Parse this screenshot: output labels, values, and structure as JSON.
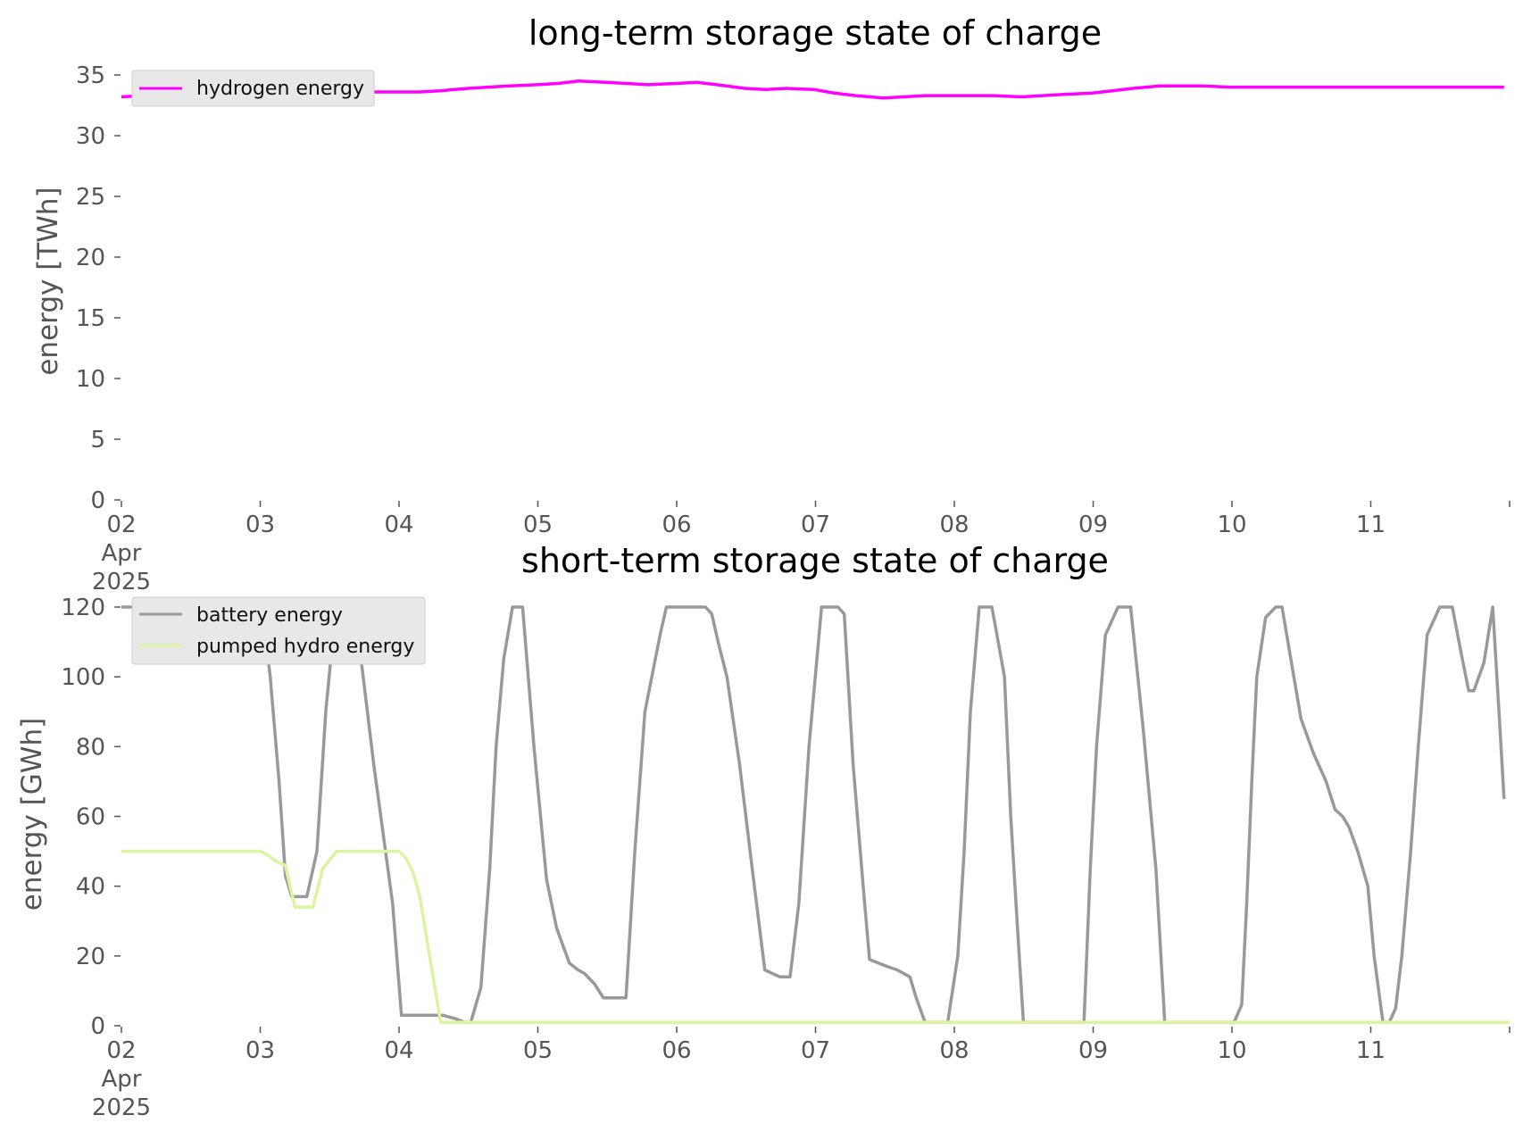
{
  "chart_data": [
    {
      "type": "line",
      "title": "long-term storage state of charge",
      "ylabel": "energy [TWh]",
      "xlabel": "",
      "ylim": [
        0,
        35
      ],
      "yticks": [
        "0",
        "5",
        "10",
        "15",
        "20",
        "25",
        "30",
        "35"
      ],
      "xlim": [
        "2025-04-02",
        "2025-04-11 23:00"
      ],
      "xticks": [
        {
          "label": "02",
          "sub": [
            "Apr",
            "2025"
          ]
        },
        {
          "label": "03"
        },
        {
          "label": "04"
        },
        {
          "label": "05"
        },
        {
          "label": "06"
        },
        {
          "label": "07"
        },
        {
          "label": "08"
        },
        {
          "label": "09"
        },
        {
          "label": "10"
        },
        {
          "label": "11"
        }
      ],
      "legend_position": "top-left",
      "series": [
        {
          "name": "hydrogen energy",
          "color": "#ff00ff",
          "x_days": [
            0,
            0.3,
            0.6,
            1,
            1.3,
            1.6,
            2,
            2.3,
            2.6,
            3,
            3.3,
            3.6,
            4,
            4.3,
            4.6,
            5,
            5.3,
            5.6,
            6,
            6.3,
            6.6,
            7,
            7.3,
            7.6,
            8,
            8.3,
            8.6,
            9,
            9.3,
            9.6,
            10,
            10.3,
            10.6,
            11,
            11.3,
            11.6,
            12,
            12.3,
            12.6,
            13,
            13.3,
            13.6,
            14,
            14.3,
            14.6,
            15,
            15.3,
            15.6,
            16,
            16.3,
            16.6,
            17,
            17.3,
            17.6,
            18,
            18.3,
            18.6,
            19,
            19.3,
            19.6,
            19.96
          ],
          "values": [
            33.2,
            33.3,
            33.5,
            33.6,
            33.7,
            33.8,
            33.9,
            33.6,
            33.4,
            33.5,
            33.6,
            33.6,
            33.6,
            33.6,
            33.7,
            33.9,
            34.0,
            34.1,
            34.2,
            34.3,
            34.5,
            34.4,
            34.3,
            34.2,
            34.3,
            34.4,
            34.2,
            33.9,
            33.8,
            33.9,
            33.8,
            33.5,
            33.3,
            33.1,
            33.2,
            33.3,
            33.3,
            33.3,
            33.3,
            33.2,
            33.3,
            33.4,
            33.5,
            33.7,
            33.9,
            34.1,
            34.1,
            34.1,
            34.0,
            34.0,
            34.0,
            34.0,
            34.0,
            34.0,
            34.0,
            34.0,
            34.0,
            34.0,
            34.0,
            34.0,
            34.0
          ]
        }
      ]
    },
    {
      "type": "line",
      "title": "short-term storage state of charge",
      "ylabel": "energy [GWh]",
      "xlabel": "",
      "ylim": [
        0,
        120
      ],
      "yticks": [
        "0",
        "20",
        "40",
        "60",
        "80",
        "100",
        "120"
      ],
      "xlim": [
        "2025-04-02",
        "2025-04-11 23:00"
      ],
      "xticks": [
        {
          "label": "02",
          "sub": [
            "Apr",
            "2025"
          ]
        },
        {
          "label": "03"
        },
        {
          "label": "04"
        },
        {
          "label": "05"
        },
        {
          "label": "06"
        },
        {
          "label": "07"
        },
        {
          "label": "08"
        },
        {
          "label": "09"
        },
        {
          "label": "10"
        },
        {
          "label": "11"
        }
      ],
      "legend_position": "top-left",
      "series": [
        {
          "name": "battery energy",
          "color": "#999999",
          "x_days": [
            0,
            1.0,
            1.12,
            1.18,
            1.25,
            1.3,
            1.35,
            1.42,
            1.47,
            1.55,
            1.62,
            1.7,
            1.75,
            1.85,
            2.0,
            2.15,
            2.22,
            2.3,
            2.38,
            2.45,
            2.55,
            2.65,
            2.72,
            2.77,
            2.85,
            2.92,
            2.97,
            3.03,
            3.1,
            3.18,
            3.27,
            3.37,
            3.45,
            3.55,
            3.62,
            3.67,
            3.75,
            3.82,
            3.88,
            3.92,
            4.0,
            4.07,
            4.15,
            4.27,
            4.32,
            4.37,
            4.45,
            4.55,
            4.63,
            4.68,
            4.73,
            4.8,
            4.9,
            5.0,
            5.1,
            5.22,
            5.3,
            5.37,
            5.45,
            5.55,
            5.63,
            5.68,
            5.73,
            5.8,
            5.88,
            5.93,
            6.0,
            6.07,
            6.15,
            6.25,
            6.3,
            6.37,
            6.45,
            6.55,
            6.63,
            6.68,
            6.73,
            6.8,
            6.9,
            7.0,
            7.05,
            7.1,
            7.15,
            7.22,
            7.28,
            7.35,
            7.45,
            7.55,
            7.63,
            7.68,
            7.73,
            7.8,
            7.9,
            8.0,
            8.1,
            8.2,
            8.27,
            8.35,
            8.42,
            8.5,
            8.6,
            8.68,
            8.72,
            8.77,
            8.82,
            8.88,
            8.92,
            8.96,
            9.0,
            9.07,
            9.15,
            9.2,
            9.27,
            9.35,
            9.45,
            9.55,
            9.62,
            9.68,
            9.73,
            9.8,
            9.88,
            9.93,
            10.0,
            10.05,
            10.1,
            10.15,
            10.22,
            10.28,
            10.35,
            10.45,
            10.55,
            10.63,
            10.68,
            10.72,
            10.8,
            10.87,
            10.92,
            10.96
          ],
          "values": [
            120,
            120,
            118,
            100,
            70,
            43,
            37,
            37,
            37,
            50,
            90,
            120,
            120,
            120,
            75,
            35,
            3,
            3,
            3,
            3,
            3,
            2,
            1,
            1,
            11,
            45,
            80,
            105,
            120,
            120,
            80,
            42,
            28,
            18,
            16,
            15,
            12,
            8,
            8,
            8,
            8,
            50,
            90,
            112,
            120,
            120,
            120,
            120,
            120,
            118,
            110,
            100,
            75,
            45,
            16,
            14,
            14,
            35,
            80,
            120,
            120,
            120,
            118,
            75,
            40,
            19,
            18,
            17,
            16,
            14,
            8,
            1,
            1,
            1,
            20,
            50,
            90,
            120,
            120,
            100,
            60,
            30,
            1,
            1,
            1,
            1,
            1,
            1,
            1,
            45,
            80,
            112,
            120,
            120,
            85,
            45,
            1,
            1,
            1,
            1,
            1,
            1,
            1,
            1,
            1,
            6,
            35,
            70,
            100,
            117,
            120,
            120,
            105,
            88,
            78,
            70,
            62,
            60,
            57,
            50,
            40,
            20,
            1,
            1,
            5,
            20,
            50,
            80,
            112,
            120,
            120,
            105,
            96,
            96,
            104,
            120,
            90,
            65
          ]
        },
        {
          "name": "pumped hydro energy",
          "color": "#d9f5a0",
          "x_days": [
            0,
            1.0,
            1.05,
            1.12,
            1.18,
            1.25,
            1.32,
            1.38,
            1.45,
            1.55,
            1.62,
            1.7,
            1.78,
            2.0,
            2.05,
            2.1,
            2.15,
            2.22,
            2.3,
            2.35,
            2.4,
            2.47,
            2.55,
            2.62,
            2.7,
            2.78,
            2.85,
            2.9,
            2.95,
            3.05,
            3.15,
            3.22,
            3.3,
            3.37,
            3.45,
            3.52,
            3.58,
            3.62,
            3.68,
            3.72,
            3.8,
            3.88,
            3.93,
            4.0,
            4.05,
            4.1,
            4.2,
            4.28,
            4.35,
            4.42,
            4.48,
            4.53,
            4.58,
            4.63,
            4.7,
            4.78,
            4.85,
            4.92,
            5.0,
            5.1,
            5.2,
            5.3,
            5.37,
            5.43,
            5.5,
            5.55,
            5.62,
            5.7,
            5.78,
            5.85,
            5.92,
            6.0,
            6.1,
            6.2,
            6.3,
            6.35,
            6.42,
            6.5,
            6.58,
            6.65,
            6.72,
            6.8,
            6.88,
            6.93,
            7.0,
            7.05,
            7.1,
            7.15,
            7.2,
            7.27,
            7.35,
            7.42,
            7.5,
            7.55,
            7.62,
            7.7,
            7.78,
            7.85,
            7.92,
            8.0,
            8.05,
            8.1,
            8.15,
            8.22,
            8.3,
            8.38,
            8.45,
            8.52,
            8.58,
            8.65,
            8.72,
            8.8,
            8.85,
            8.9,
            8.95,
            9.05,
            9.15,
            9.25,
            9.32,
            9.38,
            9.45,
            9.5,
            9.55,
            9.62,
            9.7,
            9.78,
            9.85,
            9.92,
            10.0
          ],
          "values": [
            50,
            50,
            49,
            47,
            46,
            34,
            34,
            34,
            45,
            50,
            50,
            50,
            50,
            50,
            48,
            44,
            37,
            20,
            1,
            1,
            1,
            1,
            1,
            1,
            1,
            1,
            1,
            1,
            1,
            1,
            1,
            1,
            1,
            1,
            1,
            1,
            1,
            1,
            1,
            1,
            1,
            1,
            1,
            1,
            1,
            1,
            1,
            1,
            1,
            1,
            1,
            1,
            1,
            1,
            1,
            1,
            1,
            1,
            1,
            1,
            1,
            1,
            1,
            1,
            1,
            1,
            1,
            1,
            1,
            1,
            1,
            1,
            1,
            1,
            1,
            1,
            1,
            1,
            1,
            1,
            1,
            1,
            1,
            1,
            1,
            1,
            1,
            1,
            1,
            1,
            1,
            1,
            1,
            1,
            1,
            1,
            1,
            1,
            1,
            1,
            1,
            1,
            1,
            1,
            1,
            1,
            1,
            1,
            1,
            1,
            1,
            1,
            1,
            1,
            1,
            1,
            1,
            1,
            1,
            1,
            1,
            1,
            1,
            1,
            1,
            1,
            1,
            1,
            1
          ]
        }
      ]
    }
  ]
}
